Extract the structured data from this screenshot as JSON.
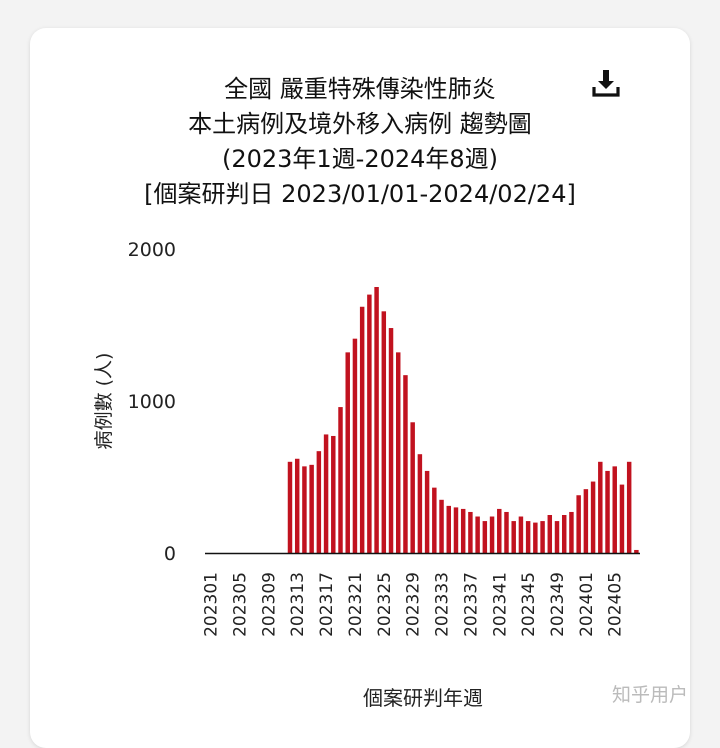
{
  "chart_data": {
    "type": "bar",
    "title_lines": [
      "全國 嚴重特殊傳染性肺炎",
      "本土病例及境外移入病例 趨勢圖",
      "(2023年1週-2024年8週)",
      "[個案研判日 2023/01/01-2024/02/24]"
    ],
    "xlabel": "個案研判年週",
    "ylabel": "病例數 (人)",
    "ylim": [
      0,
      2000
    ],
    "yticks": [
      "0",
      "1000",
      "2000"
    ],
    "xtick_labels": [
      "202301",
      "202305",
      "202309",
      "202313",
      "202317",
      "202321",
      "202325",
      "202329",
      "202333",
      "202337",
      "202341",
      "202345",
      "202349",
      "202401",
      "202405"
    ],
    "categories": [
      "202301",
      "202302",
      "202303",
      "202304",
      "202305",
      "202306",
      "202307",
      "202308",
      "202309",
      "202310",
      "202311",
      "202312",
      "202313",
      "202314",
      "202315",
      "202316",
      "202317",
      "202318",
      "202319",
      "202320",
      "202321",
      "202322",
      "202323",
      "202324",
      "202325",
      "202326",
      "202327",
      "202328",
      "202329",
      "202330",
      "202331",
      "202332",
      "202333",
      "202334",
      "202335",
      "202336",
      "202337",
      "202338",
      "202339",
      "202340",
      "202341",
      "202342",
      "202343",
      "202344",
      "202345",
      "202346",
      "202347",
      "202348",
      "202349",
      "202350",
      "202351",
      "202352",
      "202401",
      "202402",
      "202403",
      "202404",
      "202405",
      "202406",
      "202407",
      "202408"
    ],
    "values": [
      0,
      0,
      0,
      0,
      0,
      0,
      0,
      0,
      0,
      0,
      0,
      600,
      620,
      570,
      580,
      670,
      780,
      770,
      960,
      1320,
      1410,
      1620,
      1700,
      1750,
      1590,
      1480,
      1320,
      1170,
      860,
      650,
      540,
      430,
      350,
      310,
      300,
      290,
      270,
      240,
      210,
      240,
      290,
      270,
      210,
      240,
      210,
      200,
      210,
      250,
      210,
      250,
      270,
      380,
      420,
      470,
      600,
      540,
      570,
      450,
      600,
      20
    ],
    "bar_color": "#c1121f"
  },
  "download_icon": "download-icon",
  "watermark": "知乎用户"
}
